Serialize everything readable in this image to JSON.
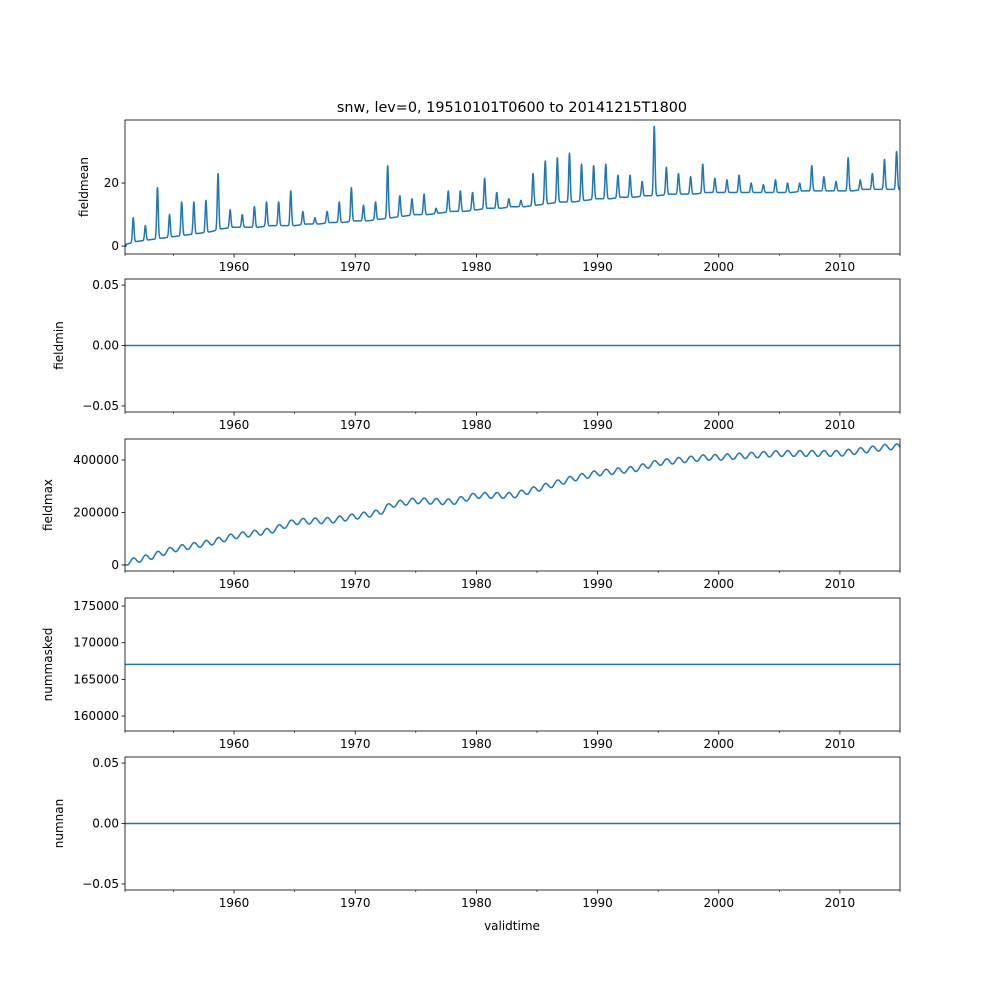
{
  "chart_data": {
    "type": "line",
    "title": "snw, lev=0, 19510101T0600 to 20141215T1800",
    "xlabel": "validtime",
    "xlim": [
      1951.0,
      2014.96
    ],
    "x_ticks": [
      1960,
      1970,
      1980,
      1990,
      2000,
      2010
    ],
    "x_tick_labels": [
      "1960",
      "1970",
      "1980",
      "1990",
      "2000",
      "2010"
    ],
    "x_minor_ticks": [
      1955,
      1965,
      1975,
      1985,
      1995,
      2005
    ],
    "line_color": "#1f77b4",
    "grid": false,
    "subplots": [
      {
        "ylabel": "fieldmean",
        "ylim": [
          -2.5,
          40
        ],
        "y_ticks": [
          0,
          20
        ],
        "y_tick_labels": [
          "0",
          "20"
        ],
        "years": [
          1951,
          1952,
          1953,
          1954,
          1955,
          1956,
          1957,
          1958,
          1959,
          1960,
          1961,
          1962,
          1963,
          1964,
          1965,
          1966,
          1967,
          1968,
          1969,
          1970,
          1971,
          1972,
          1973,
          1974,
          1975,
          1976,
          1977,
          1978,
          1979,
          1980,
          1981,
          1982,
          1983,
          1984,
          1985,
          1986,
          1987,
          1988,
          1989,
          1990,
          1991,
          1992,
          1993,
          1994,
          1995,
          1996,
          1997,
          1998,
          1999,
          2000,
          2001,
          2002,
          2003,
          2004,
          2005,
          2006,
          2007,
          2008,
          2009,
          2010,
          2011,
          2012,
          2013,
          2014
        ],
        "annual_peak": [
          9,
          6.5,
          18.5,
          10,
          14,
          14,
          14.5,
          23,
          11.5,
          10,
          12.5,
          14,
          14,
          17.5,
          11,
          9,
          11,
          14,
          18.5,
          13,
          14,
          25.5,
          16,
          15,
          16.5,
          12,
          17.5,
          17.5,
          17,
          21.5,
          17,
          15,
          14.5,
          23,
          27,
          28,
          29.5,
          26,
          25.5,
          26,
          22.5,
          22.5,
          20.5,
          38,
          25,
          23,
          22,
          26,
          21.5,
          21,
          22.5,
          20,
          19.5,
          21,
          20,
          20,
          25.5,
          22,
          20.5,
          28,
          21,
          23,
          27.5,
          30
        ],
        "annual_trough": [
          0.5,
          1.5,
          2,
          2.5,
          3,
          3.5,
          4,
          4.5,
          5.5,
          6,
          6,
          6,
          6.5,
          6.5,
          6.5,
          7,
          7,
          7.5,
          7.5,
          8,
          8,
          8.5,
          9,
          9.5,
          10,
          10,
          10.5,
          11,
          11,
          11.5,
          12,
          12,
          12.5,
          12.5,
          13,
          13.5,
          14,
          14,
          14.5,
          15,
          15,
          15.5,
          15.5,
          16,
          16,
          16.5,
          16.5,
          16.5,
          17,
          17,
          17,
          17,
          17,
          17,
          17,
          17,
          17.5,
          17.5,
          17.5,
          17.5,
          17.5,
          18,
          18,
          18
        ]
      },
      {
        "ylabel": "fieldmin",
        "ylim": [
          -0.055,
          0.055
        ],
        "y_ticks": [
          -0.05,
          0.0,
          0.05
        ],
        "y_tick_labels": [
          "−0.05",
          "0.00",
          "0.05"
        ],
        "constant_value": 0
      },
      {
        "ylabel": "fieldmax",
        "ylim": [
          -23000,
          480000
        ],
        "y_ticks": [
          0,
          200000,
          400000
        ],
        "y_tick_labels": [
          "0",
          "200000",
          "400000"
        ],
        "years": [
          1951,
          1953,
          1955,
          1958,
          1960,
          1963,
          1965,
          1968,
          1970,
          1972,
          1973,
          1975,
          1978,
          1980,
          1983,
          1985,
          1988,
          1990,
          1993,
          1995,
          1999,
          2000,
          2005,
          2010,
          2014
        ],
        "annual_level": [
          8000,
          30000,
          60000,
          85000,
          110000,
          130000,
          165000,
          170000,
          185000,
          200000,
          230000,
          245000,
          240000,
          265000,
          265000,
          290000,
          330000,
          350000,
          365000,
          390000,
          410000,
          410000,
          425000,
          425000,
          450000
        ],
        "seasonal_amplitude": 11000
      },
      {
        "ylabel": "nummasked",
        "ylim": [
          157960,
          176100
        ],
        "y_ticks": [
          160000,
          165000,
          170000,
          175000
        ],
        "y_tick_labels": [
          "160000",
          "165000",
          "170000",
          "175000"
        ],
        "constant_value": 167040
      },
      {
        "ylabel": "numnan",
        "ylim": [
          -0.055,
          0.055
        ],
        "y_ticks": [
          -0.05,
          0.0,
          0.05
        ],
        "y_tick_labels": [
          "−0.05",
          "0.00",
          "0.05"
        ],
        "constant_value": 0
      }
    ]
  }
}
